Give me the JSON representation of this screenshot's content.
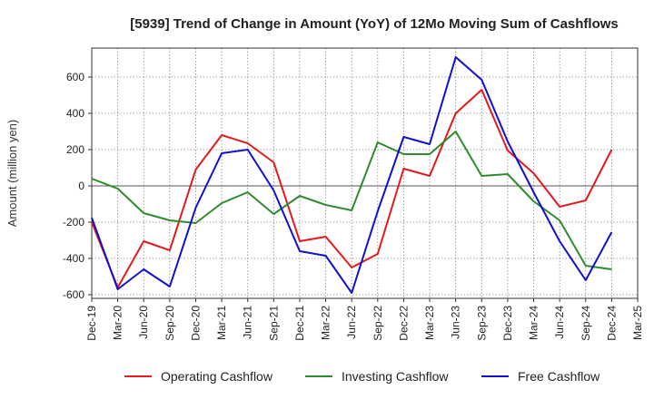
{
  "chart_data": {
    "type": "line",
    "title": "[5939]  Trend of Change in Amount (YoY) of 12Mo Moving Sum of Cashflows",
    "xlabel": "",
    "ylabel": "Amount (million yen)",
    "ylim": [
      -620,
      760
    ],
    "yticks": [
      600,
      400,
      200,
      0,
      -200,
      -400,
      -600
    ],
    "categories": [
      "Dec-19",
      "Mar-20",
      "Jun-20",
      "Sep-20",
      "Dec-20",
      "Mar-21",
      "Jun-21",
      "Sep-21",
      "Dec-21",
      "Mar-22",
      "Jun-22",
      "Sep-22",
      "Dec-22",
      "Mar-23",
      "Jun-23",
      "Sep-23",
      "Dec-23",
      "Mar-24",
      "Jun-24",
      "Sep-24",
      "Dec-24",
      "Mar-25"
    ],
    "grid": true,
    "legend_position": "bottom",
    "series": [
      {
        "name": "Operating Cashflow",
        "color": "#e41a1c",
        "values": [
          -200,
          -560,
          -305,
          -355,
          90,
          280,
          235,
          130,
          -305,
          -280,
          -450,
          -375,
          95,
          55,
          400,
          530,
          195,
          70,
          -115,
          -80,
          200,
          null
        ]
      },
      {
        "name": "Investing Cashflow",
        "color": "#2e8b2e",
        "values": [
          40,
          -15,
          -150,
          -190,
          -205,
          -95,
          -35,
          -155,
          -55,
          -105,
          -135,
          240,
          175,
          175,
          300,
          55,
          65,
          -85,
          -190,
          -440,
          -460,
          null
        ]
      },
      {
        "name": "Free Cashflow",
        "color": "#1010d0",
        "values": [
          -175,
          -570,
          -460,
          -555,
          -120,
          180,
          200,
          -25,
          -360,
          -385,
          -590,
          -140,
          270,
          230,
          710,
          585,
          245,
          -35,
          -305,
          -520,
          -255,
          null
        ]
      }
    ]
  }
}
